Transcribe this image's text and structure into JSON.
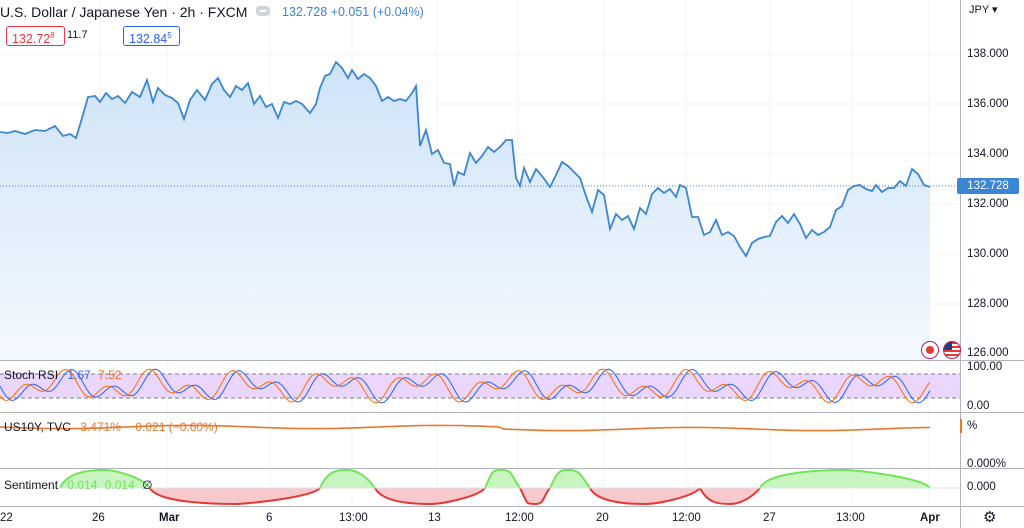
{
  "header": {
    "symbol_title": "U.S. Dollar / Japanese Yen · 2h · FXCM",
    "price_info": "132.728  +0.051 (+0.04%)",
    "sell_main": "132.72",
    "sell_sup": "8",
    "spread": "11.7",
    "buy_main": "132.84",
    "buy_sup": "5"
  },
  "main_axis": {
    "currency": "JPY",
    "ticks": [
      "138.000",
      "136.000",
      "134.000",
      "132.000",
      "130.000",
      "128.000",
      "126.000"
    ],
    "last_price": "132.728"
  },
  "stoch_rsi": {
    "label": "Stoch RSI",
    "k_value": "1.67",
    "d_value": "7.52",
    "ticks": [
      "100.00",
      "0.00"
    ]
  },
  "us10y": {
    "label": "US10Y, TVC",
    "value": "3.471%",
    "change": "−0.021 (−0.60%)",
    "ticks": [
      "%",
      "0.000%"
    ]
  },
  "sentiment": {
    "label": "Sentiment",
    "v1": "0.014",
    "v2": "0.014",
    "v3": "∅",
    "ticks": [
      "0.000"
    ]
  },
  "x_axis": [
    "22",
    "26",
    "Mar",
    "6",
    "13:00",
    "13",
    "12:00",
    "20",
    "12:00",
    "27",
    "13:00",
    "Apr"
  ],
  "colors": {
    "line": "#3a86d4",
    "fill": "#d6e8fa",
    "stoch_k": "#2962ff",
    "stoch_d": "#ff6d00",
    "us10y": "#e8782f",
    "sent_up": "#74e35a",
    "sent_down": "#e53935"
  },
  "icons": {
    "settings": "gear-icon",
    "flags": "flag-icon"
  }
}
